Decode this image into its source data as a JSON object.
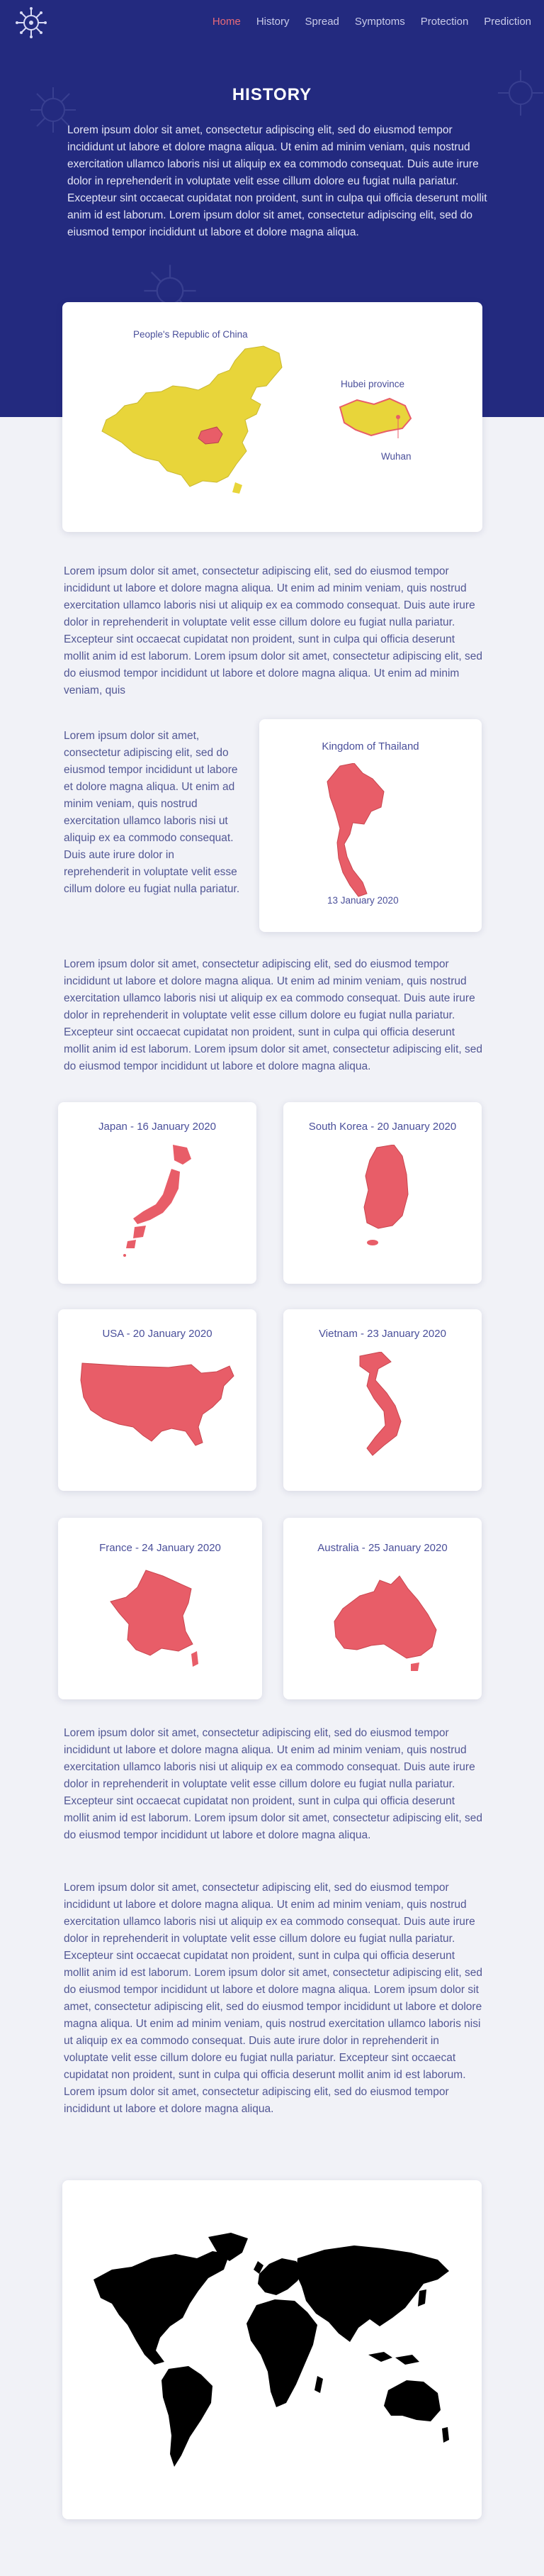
{
  "nav": {
    "items": [
      {
        "label": "Home",
        "active": true
      },
      {
        "label": "History",
        "active": false
      },
      {
        "label": "Spread",
        "active": false
      },
      {
        "label": "Symptoms",
        "active": false
      },
      {
        "label": "Protection",
        "active": false
      },
      {
        "label": "Prediction",
        "active": false
      }
    ]
  },
  "hero": {
    "title": "HISTORY",
    "intro": "Lorem ipsum dolor sit amet, consectetur adipiscing elit, sed do eiusmod tempor incididunt ut labore et dolore magna aliqua. Ut enim ad minim veniam, quis nostrud exercitation ullamco laboris nisi ut aliquip ex ea commodo consequat. Duis aute irure dolor in reprehenderit in voluptate velit esse cillum dolore eu fugiat nulla pariatur. Excepteur sint occaecat cupidatat non proident, sunt in culpa qui officia deserunt mollit anim id est laborum. Lorem ipsum dolor sit amet, consectetur adipiscing elit, sed do eiusmod tempor incididunt ut labore et dolore magna aliqua."
  },
  "china_card": {
    "country_label": "People's Republic of China",
    "province_label": "Hubei province",
    "city_label": "Wuhan"
  },
  "para_1": "Lorem ipsum dolor sit amet, consectetur adipiscing elit, sed do eiusmod tempor incididunt ut labore et dolore magna aliqua. Ut enim ad minim veniam, quis nostrud exercitation ullamco laboris nisi ut aliquip ex ea commodo consequat. Duis aute irure dolor in reprehenderit in voluptate velit esse cillum dolore eu fugiat nulla pariatur. Excepteur sint occaecat cupidatat non proident, sunt in culpa qui officia deserunt mollit anim id est laborum. Lorem ipsum dolor sit amet, consectetur adipiscing elit, sed do eiusmod tempor incididunt ut labore et dolore magna aliqua. Ut enim ad minim veniam, quis",
  "thailand": {
    "side_text": "Lorem ipsum dolor sit amet, consectetur adipiscing elit, sed do eiusmod tempor incididunt ut labore et dolore magna aliqua. Ut enim ad minim veniam, quis nostrud exercitation ullamco laboris nisi ut aliquip ex ea commodo consequat. Duis aute irure dolor in reprehenderit in voluptate velit esse cillum dolore eu fugiat nulla pariatur.",
    "title": "Kingdom of Thailand",
    "date": "13 January 2020"
  },
  "para_2": "Lorem ipsum dolor sit amet, consectetur adipiscing elit, sed do eiusmod tempor incididunt ut labore et dolore magna aliqua. Ut enim ad minim veniam, quis nostrud exercitation ullamco laboris nisi ut aliquip ex ea commodo consequat. Duis aute irure dolor in reprehenderit in voluptate velit esse cillum dolore eu fugiat nulla pariatur. Excepteur sint occaecat cupidatat non proident, sunt in culpa qui officia deserunt mollit anim id est laborum. Lorem ipsum dolor sit amet, consectetur adipiscing elit, sed do eiusmod tempor incididunt ut labore et dolore magna aliqua.",
  "countries": [
    {
      "label": "Japan - 16 January 2020"
    },
    {
      "label": "South Korea - 20 January 2020"
    },
    {
      "label": "USA - 20 January 2020"
    },
    {
      "label": "Vietnam - 23 January 2020"
    },
    {
      "label": "France - 24 January 2020"
    },
    {
      "label": "Australia - 25 January 2020"
    }
  ],
  "para_3": "Lorem ipsum dolor sit amet, consectetur adipiscing elit, sed do eiusmod tempor incididunt ut labore et dolore magna aliqua. Ut enim ad minim veniam, quis nostrud exercitation ullamco laboris nisi ut aliquip ex ea commodo consequat. Duis aute irure dolor in reprehenderit in voluptate velit esse cillum dolore eu fugiat nulla pariatur. Excepteur sint occaecat cupidatat non proident, sunt in culpa qui officia deserunt mollit anim id est laborum. Lorem ipsum dolor sit amet, consectetur adipiscing elit, sed do eiusmod tempor incididunt ut labore et dolore magna aliqua.",
  "para_4": "Lorem ipsum dolor sit amet, consectetur adipiscing elit, sed do eiusmod tempor incididunt ut labore et dolore magna aliqua. Ut enim ad minim veniam, quis nostrud exercitation ullamco laboris nisi ut aliquip ex ea commodo consequat. Duis aute irure dolor in reprehenderit in voluptate velit esse cillum dolore eu fugiat nulla pariatur. Excepteur sint occaecat cupidatat non proident, sunt in culpa qui officia deserunt mollit anim id est laborum. Lorem ipsum dolor sit amet, consectetur adipiscing elit, sed do eiusmod tempor incididunt ut labore et dolore magna aliqua. Lorem ipsum dolor sit amet, consectetur adipiscing elit, sed do eiusmod tempor incididunt ut labore et dolore magna aliqua. Ut enim ad minim veniam, quis nostrud exercitation ullamco laboris nisi ut aliquip ex ea commodo consequat. Duis aute irure dolor in reprehenderit in voluptate velit esse cillum dolore eu fugiat nulla pariatur. Excepteur sint occaecat cupidatat non proident, sunt in culpa qui officia deserunt mollit anim id est laborum. Lorem ipsum dolor sit amet, consectetur adipiscing elit, sed do eiusmod tempor incididunt ut labore et dolore magna aliqua.",
  "colors": {
    "hero_bg": "#232a7f",
    "page_bg": "#f1f2f7",
    "accent": "#e86a78",
    "map_red": "#e85d68",
    "map_yellow": "#e8d53a",
    "hubei_red": "#e85d68"
  },
  "icons": {
    "logo": "virus-logo-icon",
    "world": "world-map-icon"
  }
}
